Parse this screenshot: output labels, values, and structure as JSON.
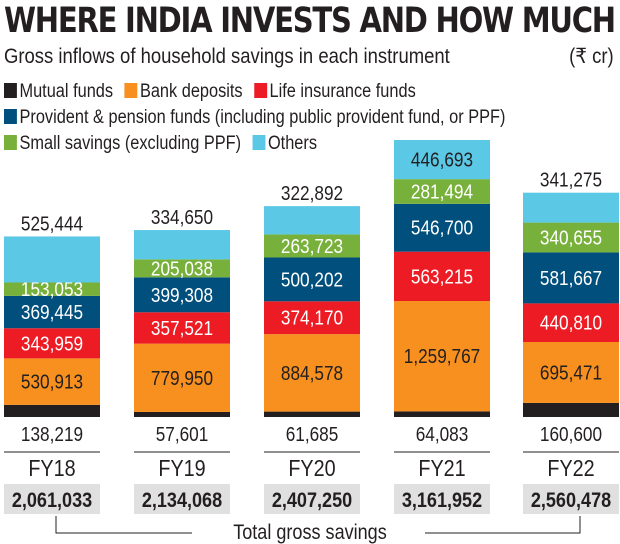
{
  "header": {
    "title": "WHERE INDIA INVESTS AND HOW MUCH",
    "subtitle": "Gross inflows of household savings in each instrument",
    "unit": "(₹ cr)"
  },
  "chart_data": {
    "type": "bar",
    "stacked": true,
    "title": "WHERE INDIA INVESTS AND HOW MUCH",
    "subtitle": "Gross inflows of household savings in each instrument (₹ cr)",
    "xlabel": "",
    "ylabel": "",
    "grid": false,
    "legend_position": "top-left",
    "categories": [
      "FY18",
      "FY19",
      "FY20",
      "FY21",
      "FY22"
    ],
    "series": [
      {
        "name": "Mutual funds",
        "color": "#231f20",
        "values": [
          138219,
          57601,
          61685,
          64083,
          160600
        ]
      },
      {
        "name": "Bank deposits",
        "color": "#f7901e",
        "values": [
          530913,
          779950,
          884578,
          1259767,
          695471
        ]
      },
      {
        "name": "Life insurance funds",
        "color": "#ed1c24",
        "values": [
          343959,
          357521,
          374170,
          563215,
          440810
        ]
      },
      {
        "name": "Provident & pension funds (including public provident fund, or PPF)",
        "color": "#004f7c",
        "values": [
          369445,
          399308,
          500202,
          546700,
          581667
        ]
      },
      {
        "name": "Small savings (excluding PPF)",
        "color": "#77b13b",
        "values": [
          153053,
          205038,
          263723,
          281494,
          340655
        ]
      },
      {
        "name": "Others",
        "color": "#5bc8e6",
        "values": [
          525444,
          334650,
          322892,
          446693,
          341275
        ]
      }
    ],
    "labels": {
      "Mutual funds": [
        "138,219",
        "57,601",
        "61,685",
        "64,083",
        "160,600"
      ],
      "Bank deposits": [
        "530,913",
        "779,950",
        "884,578",
        "1,259,767",
        "695,471"
      ],
      "Life insurance funds": [
        "343,959",
        "357,521",
        "374,170",
        "563,215",
        "440,810"
      ],
      "Provident & pension funds (including public provident fund, or PPF)": [
        "369,445",
        "399,308",
        "500,202",
        "546,700",
        "581,667"
      ],
      "Small savings (excluding PPF)": [
        "153,053",
        "205,038",
        "263,723",
        "281,494",
        "340,655"
      ],
      "Others": [
        "525,444",
        "334,650",
        "322,892",
        "446,693",
        "341,275"
      ]
    },
    "totals": [
      2061033,
      2134068,
      2407250,
      3161952,
      2560478
    ],
    "total_labels": [
      "2,061,033",
      "2,134,068",
      "2,407,250",
      "3,161,952",
      "2,560,478"
    ],
    "totals_caption": "Total gross savings"
  },
  "legend": {
    "row1": [
      "Mutual funds",
      "Bank deposits",
      "Life insurance funds"
    ],
    "row2": [
      "Provident & pension funds (including public provident fund, or PPF)"
    ],
    "row3": [
      "Small savings (excluding PPF)",
      "Others"
    ]
  }
}
